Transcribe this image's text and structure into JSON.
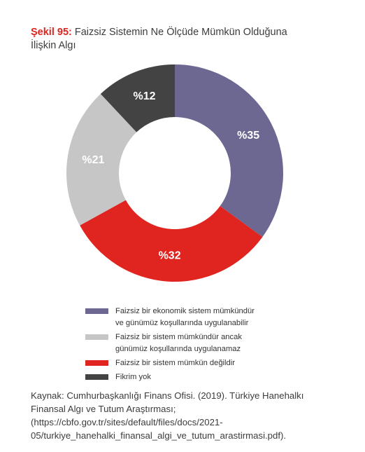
{
  "figure": {
    "label": "Şekil 95:",
    "title_line1": "Faizsiz Sistemin Ne Ölçüde Mümkün Olduğuna",
    "title_line2": "İlişkin Algı"
  },
  "chart_data": {
    "type": "pie",
    "donut": true,
    "title": "Faizsiz Sistemin Ne Ölçüde Mümkün Olduğuna İlişkin Algı",
    "start_angle_deg": 0,
    "direction": "clockwise",
    "slices": [
      {
        "label": "Faizsiz bir ekonomik sistem mümkündür ve günümüz koşullarında uygulanabilir",
        "value": 35,
        "display": "%35",
        "color": "#6d6892"
      },
      {
        "label": "Faizsiz bir sistem mümkün değildir",
        "value": 32,
        "display": "%32",
        "color": "#e0241f"
      },
      {
        "label": "Faizsiz bir sistem mümkündür ancak günümüz koşullarında uygulanamaz",
        "value": 21,
        "display": "%21",
        "color": "#c6c6c6"
      },
      {
        "label": "Fikrim yok",
        "value": 12,
        "display": "%12",
        "color": "#434343"
      }
    ],
    "legend_position": "bottom"
  },
  "legend": [
    {
      "text": "Faizsiz bir ekonomik sistem mümkündür\nve günümüz koşullarında uygulanabilir",
      "color": "#6d6892"
    },
    {
      "text": "Faizsiz bir sistem mümkündür ancak\ngünümüz koşullarında uygulanamaz",
      "color": "#c6c6c6"
    },
    {
      "text": "Faizsiz bir sistem mümkün değildir",
      "color": "#e0241f"
    },
    {
      "text": "Fikrim yok",
      "color": "#434343"
    }
  ],
  "source": "Kaynak: Cumhurbaşkanlığı Finans Ofisi. (2019). Türkiye Hanehalkı Finansal Algı ve Tutum Araştırması; (https://cbfo.gov.tr/sites/default/files/docs/2021-05/turkiye_hanehalki_finansal_algi_ve_tutum_arastirmasi.pdf)."
}
